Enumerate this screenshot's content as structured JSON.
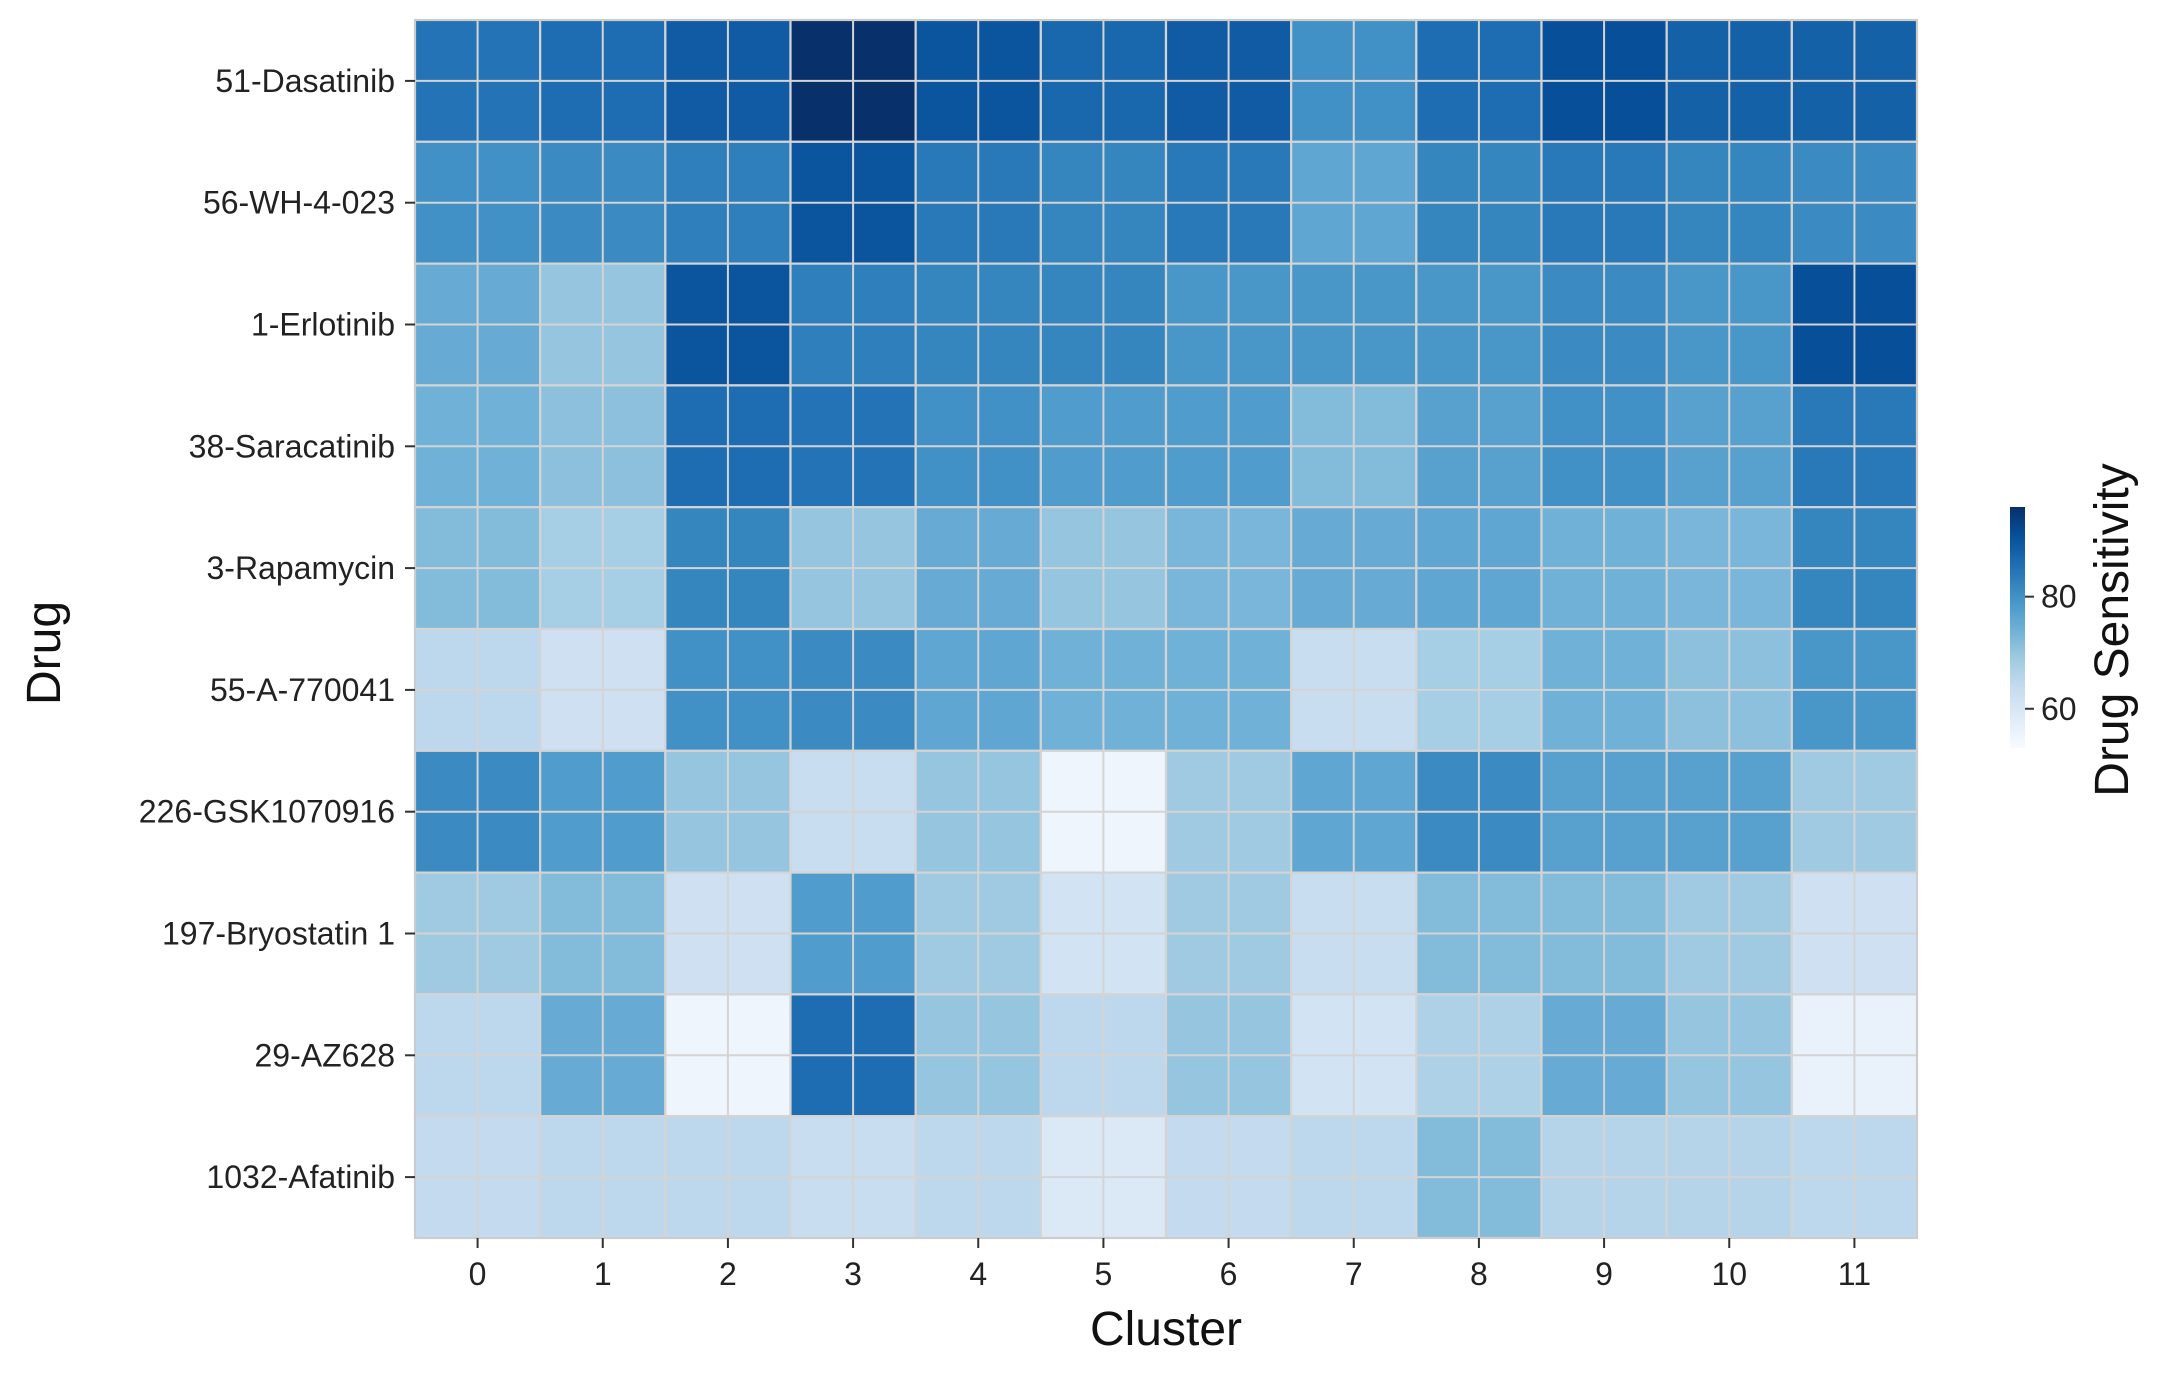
{
  "chart_data": {
    "type": "heatmap",
    "title": "",
    "xlabel": "Cluster",
    "ylabel": "Drug",
    "colorbar_label": "Drug Sensitivity",
    "colormap": "Blues",
    "color_range": [
      53,
      96
    ],
    "colorbar_ticks": [
      60,
      80
    ],
    "clusters": [
      "0",
      "1",
      "2",
      "3",
      "4",
      "5",
      "6",
      "7",
      "8",
      "9",
      "10",
      "11"
    ],
    "drugs": [
      "51-Dasatinib",
      "56-WH-4-023",
      "1-Erlotinib",
      "38-Saracatinib",
      "3-Rapamycin",
      "55-A-770041",
      "226-GSK1070916",
      "197-Bryostatin 1",
      "29-AZ628",
      "1032-Afatinib"
    ],
    "values": [
      [
        85,
        86,
        89,
        96,
        90,
        87,
        89,
        80,
        86,
        91,
        88,
        88
      ],
      [
        80,
        81,
        83,
        90,
        84,
        82,
        84,
        76,
        82,
        84,
        82,
        81
      ],
      [
        75,
        70,
        90,
        83,
        82,
        82,
        79,
        79,
        79,
        81,
        79,
        91
      ],
      [
        74,
        71,
        86,
        85,
        80,
        78,
        78,
        72,
        77,
        80,
        77,
        84
      ],
      [
        72,
        68,
        82,
        70,
        75,
        70,
        73,
        75,
        76,
        74,
        73,
        82
      ],
      [
        65,
        62,
        80,
        81,
        76,
        74,
        74,
        63,
        68,
        74,
        71,
        79
      ],
      [
        81,
        78,
        70,
        63,
        70,
        55,
        69,
        76,
        81,
        77,
        77,
        69
      ],
      [
        69,
        72,
        62,
        78,
        69,
        61,
        69,
        63,
        72,
        72,
        69,
        62
      ],
      [
        65,
        75,
        55,
        86,
        70,
        65,
        70,
        61,
        67,
        75,
        70,
        56
      ],
      [
        64,
        65,
        65,
        63,
        65,
        59,
        64,
        65,
        72,
        66,
        66,
        65
      ]
    ],
    "grid": true
  }
}
